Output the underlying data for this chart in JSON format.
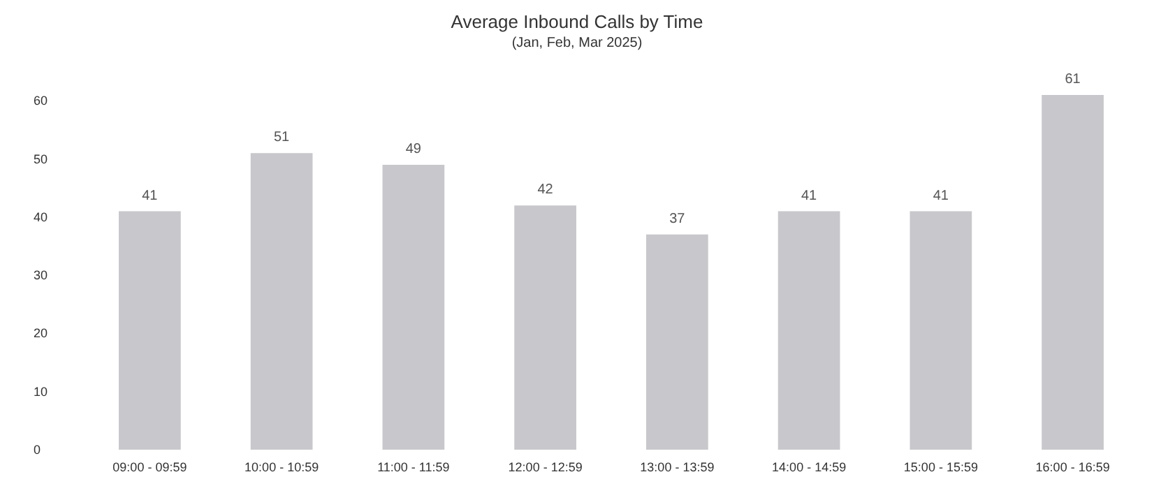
{
  "chart_data": {
    "type": "bar",
    "title": "Average Inbound Calls by Time",
    "subtitle": "(Jan, Feb, Mar 2025)",
    "categories": [
      "09:00 - 09:59",
      "10:00 - 10:59",
      "11:00 - 11:59",
      "12:00 - 12:59",
      "13:00 - 13:59",
      "14:00 - 14:59",
      "15:00 - 15:59",
      "16:00 - 16:59"
    ],
    "values": [
      41,
      51,
      49,
      42,
      37,
      41,
      41,
      61
    ],
    "color": "#c8c8cc",
    "ylim": [
      0,
      61
    ],
    "yticks": [
      0,
      10,
      20,
      30,
      40,
      50,
      60
    ],
    "grid": false,
    "data_labels": true
  }
}
